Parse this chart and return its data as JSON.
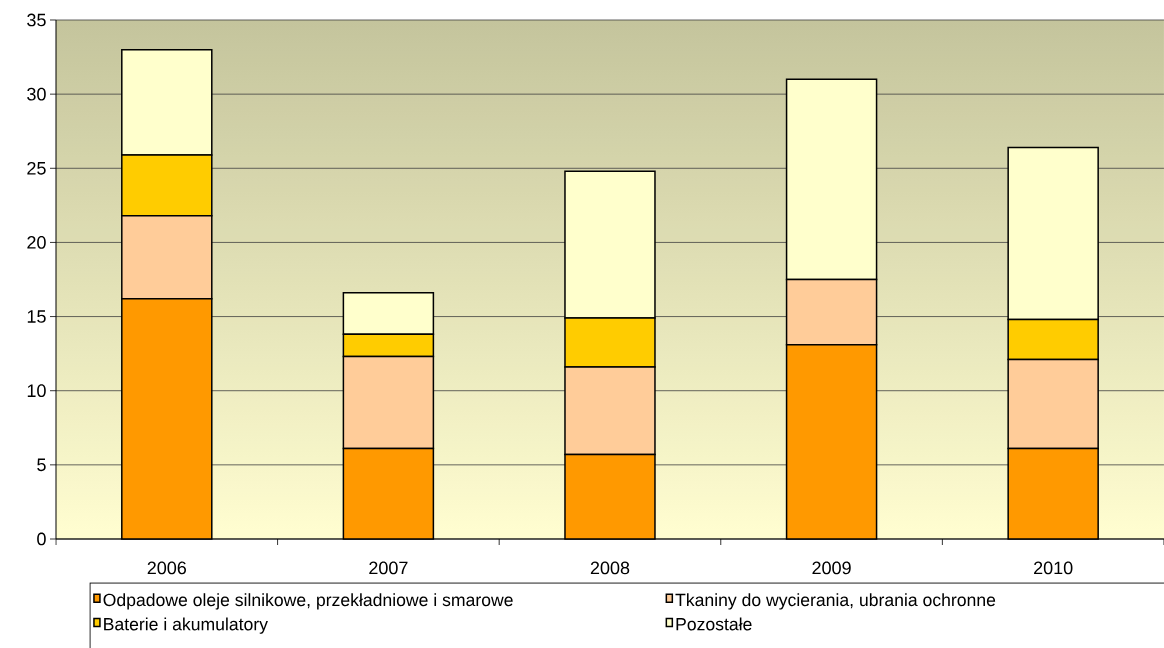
{
  "chart_data": {
    "type": "bar",
    "stacked": true,
    "categories": [
      "2006",
      "2007",
      "2008",
      "2009",
      "2010"
    ],
    "series": [
      {
        "name": "Odpadowe oleje silnikowe, przekładniowe i smarowe",
        "color": "#ff9900",
        "values": [
          16.2,
          6.1,
          5.7,
          13.1,
          6.1
        ]
      },
      {
        "name": "Tkaniny do wycierania, ubrania ochronne",
        "color": "#ffcc99",
        "values": [
          5.6,
          6.2,
          5.9,
          4.4,
          6.0
        ]
      },
      {
        "name": "Baterie i akumulatory",
        "color": "#ffcc00",
        "values": [
          4.1,
          1.5,
          3.3,
          null,
          2.7
        ]
      },
      {
        "name": "Pozostałe",
        "color": "#ffffcc",
        "values": [
          7.1,
          2.8,
          9.9,
          13.5,
          11.6
        ]
      }
    ],
    "ylim": [
      0,
      35
    ],
    "yticks": [
      0,
      5,
      10,
      15,
      20,
      25,
      30,
      35
    ],
    "grid": "y",
    "legend": "bottom"
  }
}
